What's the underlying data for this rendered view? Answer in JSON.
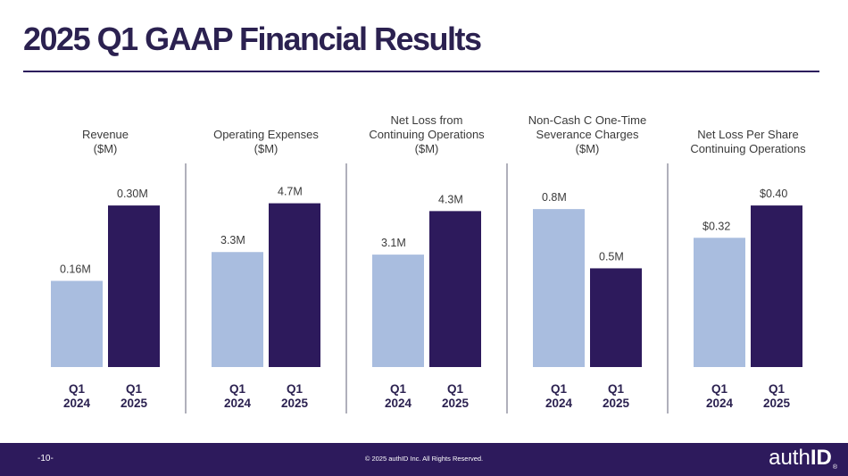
{
  "slide": {
    "title": "2025 Q1 GAAP Financial Results"
  },
  "colors": {
    "bar_2024": "#a9bddf",
    "bar_2025": "#2d1a5c",
    "accent": "#2d1a5c",
    "divider": "#7b7b8e"
  },
  "footer": {
    "page_number": "-10-",
    "copyright": "© 2025 authID Inc. All Rights Reserved.",
    "logo_light": "auth",
    "logo_bold": "ID",
    "logo_mark": "®"
  },
  "chart_data": [
    {
      "type": "bar",
      "title": [
        "Revenue",
        "($M)"
      ],
      "categories": [
        "Q1 2024",
        "Q1 2025"
      ],
      "values": [
        0.16,
        0.3
      ],
      "labels": [
        "0.16M",
        "0.30M"
      ],
      "ylim": [
        0,
        0.33
      ]
    },
    {
      "type": "bar",
      "title": [
        "Operating Expenses",
        "($M)"
      ],
      "categories": [
        "Q1 2024",
        "Q1 2025"
      ],
      "values": [
        3.3,
        4.7
      ],
      "labels": [
        "3.3M",
        "4.7M"
      ],
      "ylim": [
        0,
        5.1
      ]
    },
    {
      "type": "bar",
      "title": [
        "Net Loss from",
        "Continuing Operations",
        "($M)"
      ],
      "categories": [
        "Q1 2024",
        "Q1 2025"
      ],
      "values": [
        3.1,
        4.3
      ],
      "labels": [
        "3.1M",
        "4.3M"
      ],
      "ylim": [
        0,
        4.9
      ]
    },
    {
      "type": "bar",
      "title": [
        "Non-Cash C One-Time",
        "Severance Charges",
        "($M)"
      ],
      "categories": [
        "Q1 2024",
        "Q1 2025"
      ],
      "values": [
        0.8,
        0.5
      ],
      "labels": [
        "0.8M",
        "0.5M"
      ],
      "ylim": [
        0,
        0.9
      ]
    },
    {
      "type": "bar",
      "title": [
        "Net Loss Per Share",
        "Continuing Operations"
      ],
      "categories": [
        "Q1 2024",
        "Q1 2025"
      ],
      "values": [
        0.32,
        0.4
      ],
      "labels": [
        "$0.32",
        "$0.40"
      ],
      "ylim": [
        0,
        0.44
      ]
    }
  ]
}
